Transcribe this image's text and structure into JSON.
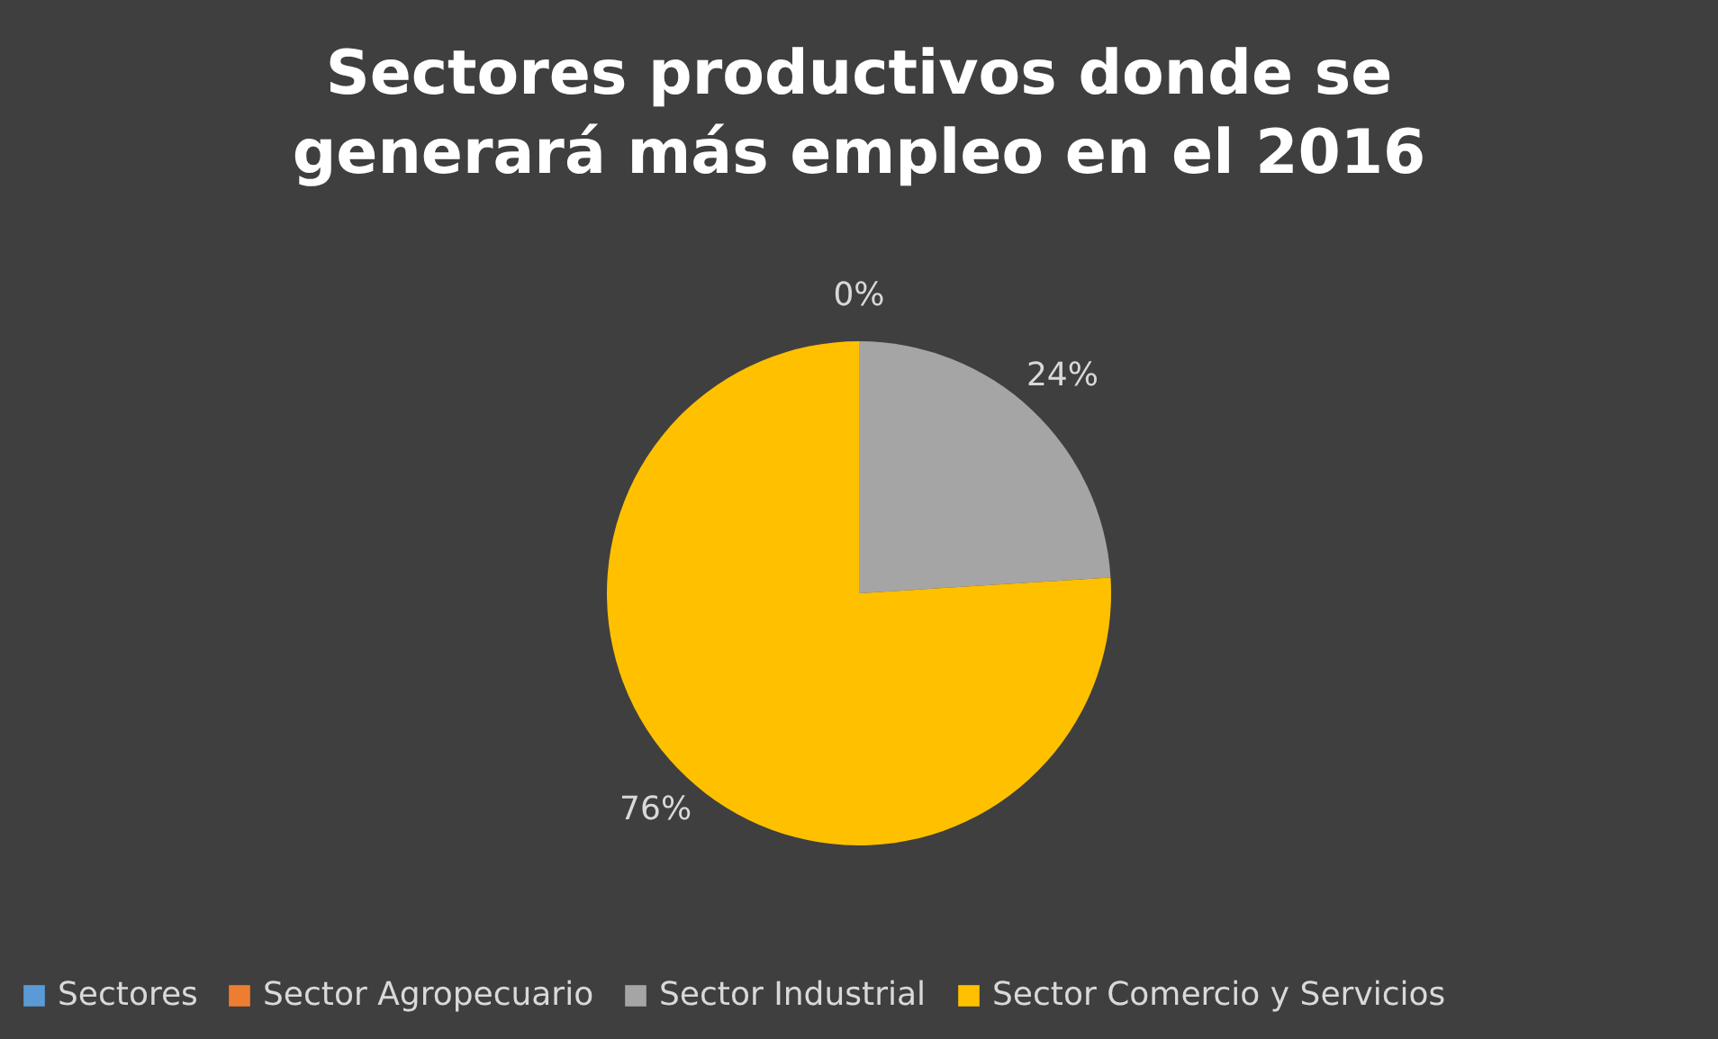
{
  "chart_data": {
    "type": "pie",
    "title": "Sectores productivos donde se generará más empleo en el 2016",
    "categories": [
      "Sectores",
      "Sector Agropecuario",
      "Sector Industrial",
      "Sector Comercio y Servicios"
    ],
    "values": [
      0,
      0,
      24,
      76
    ],
    "colors": [
      "#5b9bd5",
      "#ed7d31",
      "#a5a5a5",
      "#ffc000"
    ],
    "value_labels": [
      null,
      "0%",
      "24%",
      "76%"
    ],
    "legend": "bottom"
  }
}
